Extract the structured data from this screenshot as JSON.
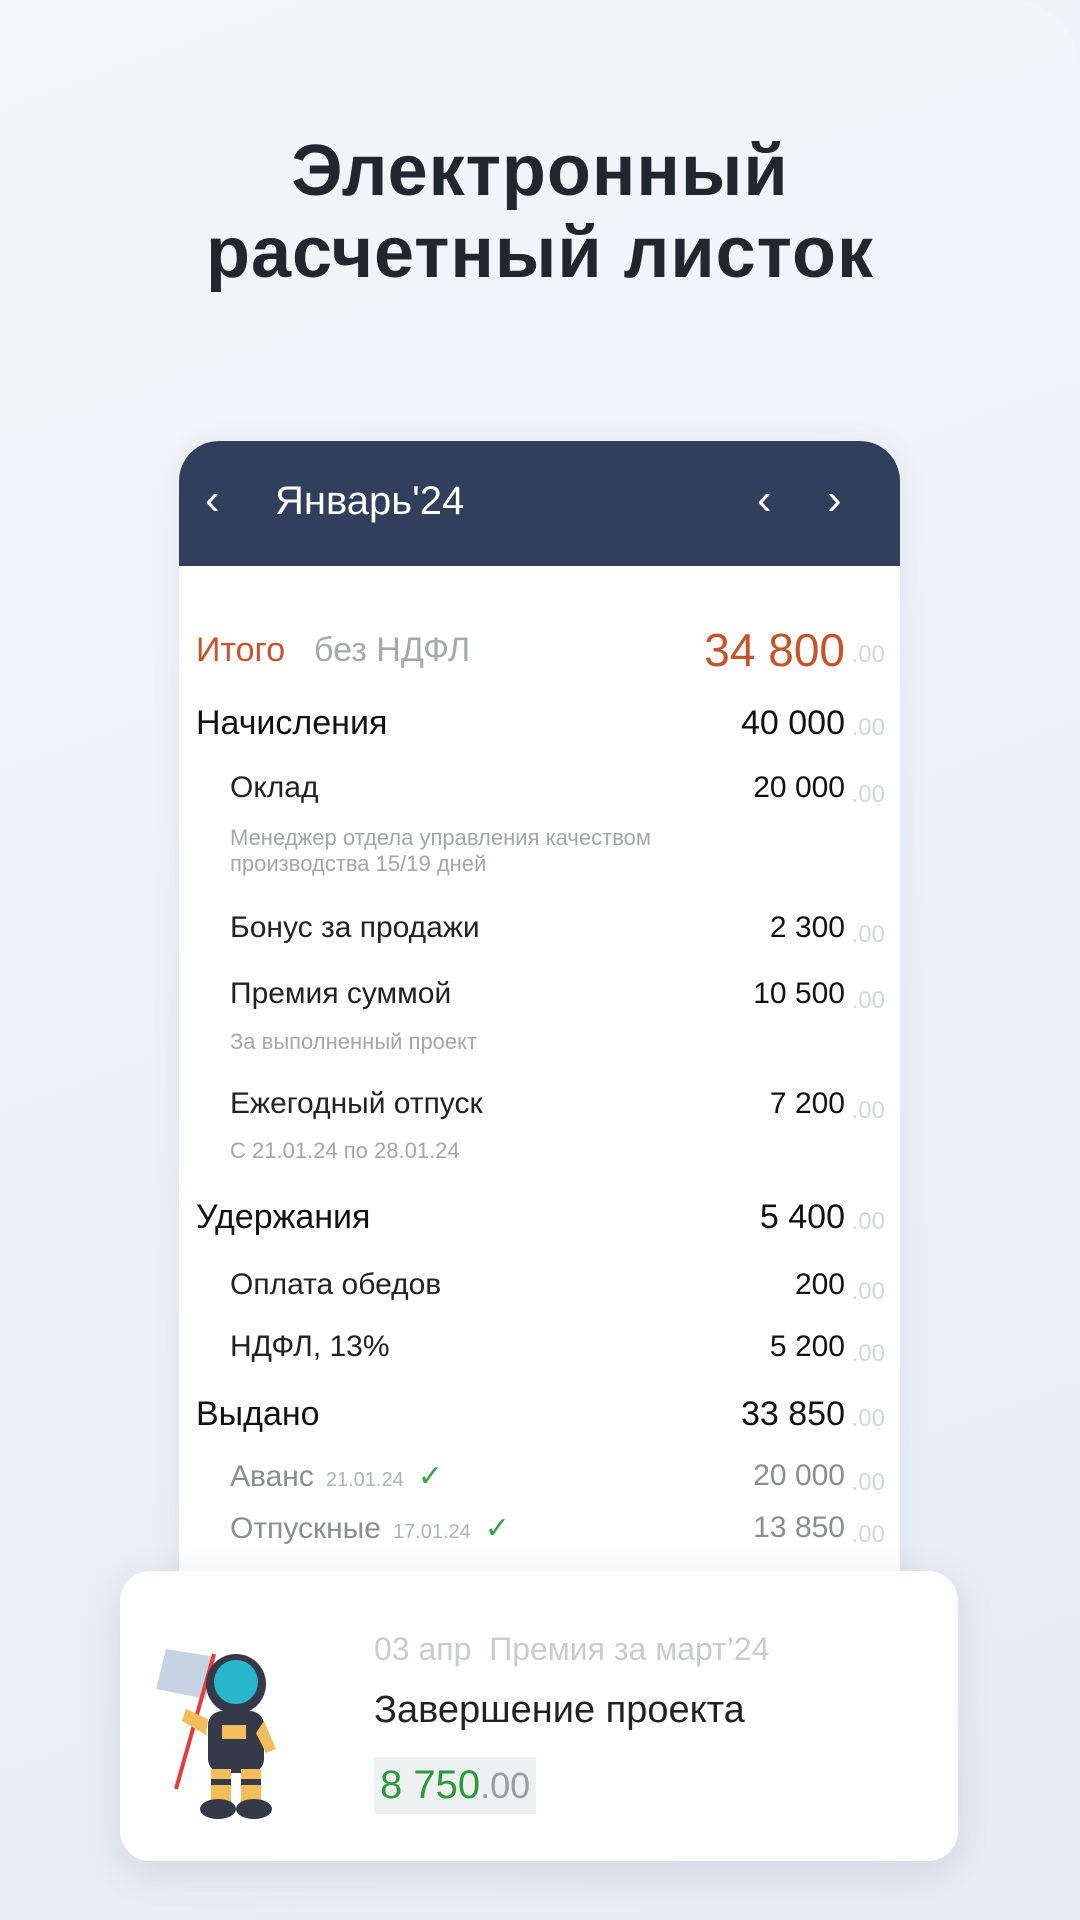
{
  "headline": {
    "line1": "Электронный",
    "line2": "расчетный листок"
  },
  "header": {
    "back_icon": "chevron-left",
    "title": "Январь'24",
    "prev_icon": "chevron-left",
    "next_icon": "chevron-right"
  },
  "colors": {
    "header_bg": "#323f5c",
    "total": "#c4542a",
    "paid_check": "#3ca24b",
    "bonus_amount": "#2a9a3c"
  },
  "total": {
    "label": "Итого",
    "sub": "без НДФЛ",
    "amount": "34 800",
    "dec": ".00"
  },
  "accruals": {
    "label": "Начисления",
    "amount": "40 000",
    "dec": ".00",
    "items": [
      {
        "label": "Оклад",
        "amount": "20 000",
        "dec": ".00",
        "note": "Менеджер отдела управления качеством производства 15/19 дней"
      },
      {
        "label": "Бонус за продажи",
        "amount": "2 300",
        "dec": ".00"
      },
      {
        "label": "Премия суммой",
        "amount": "10 500",
        "dec": ".00",
        "note": "За выполненный проект"
      },
      {
        "label": "Ежегодный отпуск",
        "amount": "7 200",
        "dec": ".00",
        "note": "С 21.01.24 по 28.01.24"
      }
    ]
  },
  "deductions": {
    "label": "Удержания",
    "amount": "5 400",
    "dec": ".00",
    "items": [
      {
        "label": "Оплата обедов",
        "amount": "200",
        "dec": ".00"
      },
      {
        "label": "НДФЛ, 13%",
        "amount": "5 200",
        "dec": ".00"
      }
    ]
  },
  "paid": {
    "label": "Выдано",
    "amount": "33 850",
    "dec": ".00",
    "items": [
      {
        "label": "Аванс",
        "date": "21.01.24",
        "amount": "20 000",
        "dec": ".00",
        "check": "✓"
      },
      {
        "label": "Отпускные",
        "date": "17.01.24",
        "amount": "13 850",
        "dec": ".00",
        "check": "✓"
      }
    ]
  },
  "notification": {
    "date": "03 апр",
    "category": "Премия за март’24",
    "title": "Завершение проекта",
    "amount": "8 750",
    "dec": ".00",
    "icon": "astronaut-with-flag"
  }
}
